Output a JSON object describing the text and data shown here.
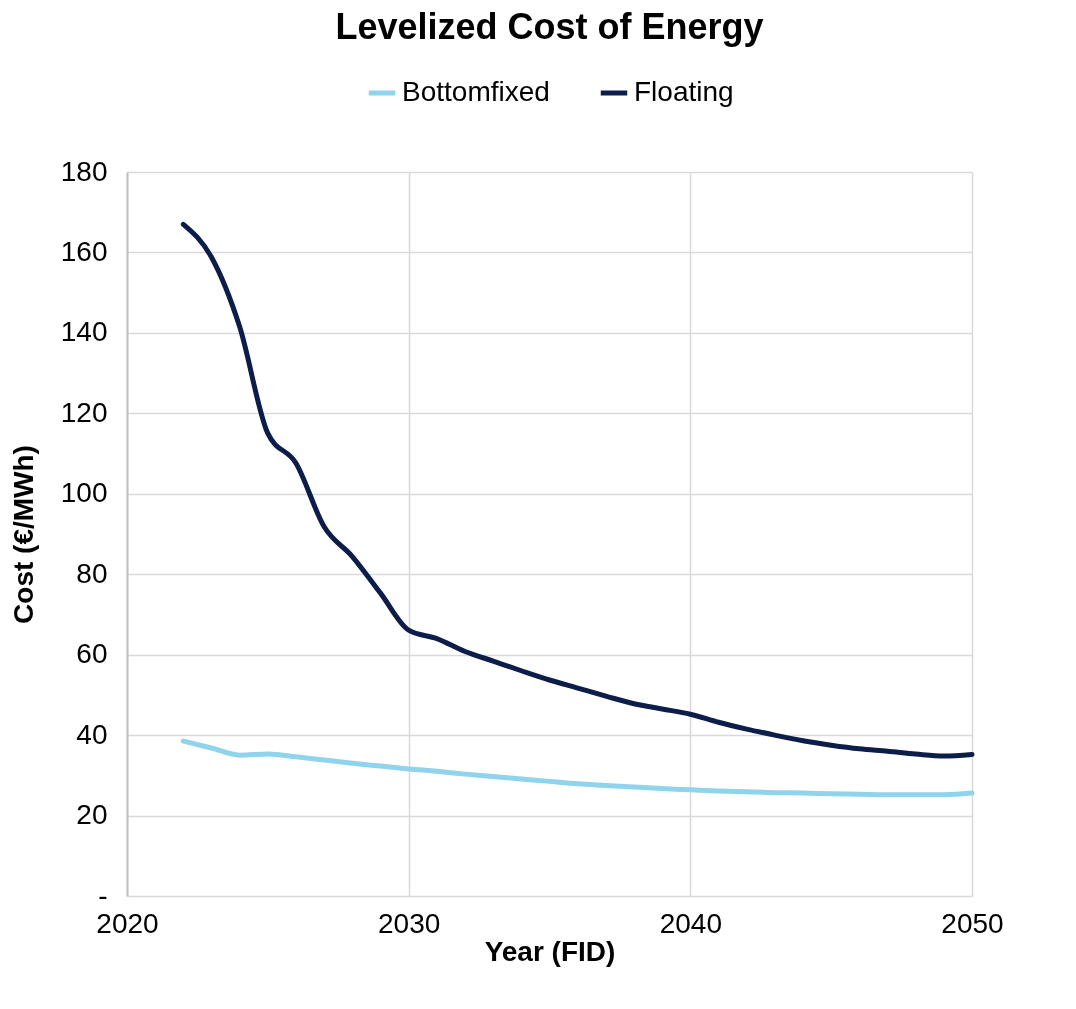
{
  "chart_data": {
    "type": "line",
    "title": "Levelized Cost of Energy",
    "xlabel": "Year (FID)",
    "ylabel": "Cost (€/MWh)",
    "x": [
      2022,
      2023,
      2024,
      2025,
      2026,
      2027,
      2028,
      2029,
      2030,
      2031,
      2032,
      2033,
      2034,
      2035,
      2036,
      2037,
      2038,
      2039,
      2040,
      2041,
      2042,
      2043,
      2044,
      2045,
      2046,
      2047,
      2048,
      2049,
      2050
    ],
    "series": [
      {
        "name": "Bottomfixed",
        "color": "#8fd3ec",
        "values": [
          38.5,
          36.8,
          35,
          35.3,
          34.6,
          33.8,
          33,
          32.3,
          31.6,
          31,
          30.3,
          29.7,
          29.1,
          28.5,
          27.9,
          27.5,
          27.1,
          26.7,
          26.4,
          26.1,
          25.9,
          25.7,
          25.6,
          25.4,
          25.3,
          25.2,
          25.2,
          25.2,
          25.6
        ]
      },
      {
        "name": "Floating",
        "color": "#0c1d4a",
        "values": [
          167,
          158.8,
          141.5,
          115,
          107.6,
          91.8,
          84.4,
          75.3,
          66.1,
          64,
          60.8,
          58.4,
          56,
          53.7,
          51.7,
          49.7,
          47.8,
          46.5,
          45.2,
          43.2,
          41.5,
          40,
          38.6,
          37.5,
          36.6,
          36,
          35.3,
          34.8,
          35.2
        ]
      }
    ],
    "xlim": [
      2020,
      2050
    ],
    "xticks": [
      2020,
      2030,
      2040,
      2050
    ],
    "ylim": [
      0,
      180
    ],
    "yticks": [
      {
        "value": 0,
        "label": "-"
      },
      20,
      40,
      60,
      80,
      100,
      120,
      140,
      160,
      180
    ],
    "grid": true,
    "legend": "top",
    "line_style": "solid",
    "marker": "none"
  }
}
